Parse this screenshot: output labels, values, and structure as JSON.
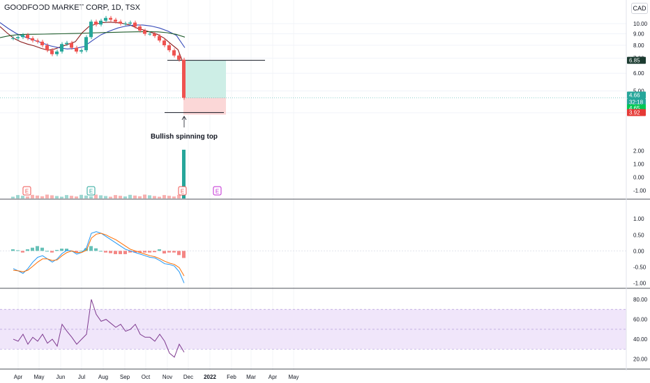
{
  "title": "GOODFOOD MARKET CORP, 1D, TSX",
  "currency": "CAD",
  "colors": {
    "up": "#26a69a",
    "down": "#ef5350",
    "sma_short": "#8b1a1a",
    "sma_mid": "#3449b8",
    "sma_long": "#1d5b2a",
    "macd": "#2196f3",
    "signal": "#ff6d00",
    "rsi": "#7e3a8f",
    "rsi_band": "#f0e6fa",
    "target_zone": "#cdeee6",
    "stop_zone": "#fbd7d7",
    "earnings_red": "#ef5350",
    "earnings_green": "#26a69a",
    "earnings_future": "#c026d3"
  },
  "annotation": "Bullish spinning top",
  "price_labels": [
    {
      "text": "6.85",
      "bg": "#1b3b30"
    },
    {
      "text": "4.66",
      "bg": "#26a69a"
    },
    {
      "text": "32:18",
      "bg": "#26a69a"
    },
    {
      "text": "4.65",
      "bg": "#00c853"
    },
    {
      "text": "3.92",
      "bg": "#e53935"
    }
  ],
  "earnings_markers": [
    {
      "date": "2021-04-13",
      "label": "E",
      "kind": "past-red"
    },
    {
      "date": "2021-07-14",
      "label": "E",
      "kind": "past-green"
    },
    {
      "date": "2021-11-22",
      "label": "E",
      "kind": "past-red"
    },
    {
      "date": "2022-01-11",
      "label": "E",
      "kind": "future"
    }
  ],
  "chart_data": [
    {
      "type": "candlestick",
      "title": "GOODFOOD MARKET CORP, 1D, TSX",
      "y_axis_ticks": [
        "10.00",
        "9.00",
        "8.00",
        "7.00",
        "6.00",
        "5.00",
        "4.00"
      ],
      "ylim": [
        3.2,
        11.2
      ],
      "scale": "log",
      "x_axis_ticks": [
        "Apr",
        "May",
        "Jun",
        "Jul",
        "Aug",
        "Sep",
        "Oct",
        "Nov",
        "Dec",
        "2022",
        "Feb",
        "Mar",
        "Apr",
        "May"
      ],
      "close_series": {
        "dates": [
          "2021-03-22",
          "2021-03-29",
          "2021-04-05",
          "2021-04-12",
          "2021-04-19",
          "2021-04-26",
          "2021-05-03",
          "2021-05-10",
          "2021-05-17",
          "2021-05-24",
          "2021-05-31",
          "2021-06-07",
          "2021-06-14",
          "2021-06-21",
          "2021-06-28",
          "2021-07-05",
          "2021-07-12",
          "2021-07-19",
          "2021-07-26",
          "2021-08-02",
          "2021-08-09",
          "2021-08-16",
          "2021-08-23",
          "2021-08-30",
          "2021-09-06",
          "2021-09-13",
          "2021-09-20",
          "2021-09-27",
          "2021-10-04",
          "2021-10-11",
          "2021-10-18",
          "2021-10-25",
          "2021-11-01",
          "2021-11-08",
          "2021-11-15",
          "2021-11-22"
        ],
        "values": [
          8.6,
          8.7,
          8.9,
          8.6,
          8.4,
          8.3,
          8.0,
          7.6,
          7.3,
          7.5,
          8.1,
          8.2,
          7.8,
          7.5,
          7.6,
          8.7,
          10.2,
          9.9,
          10.3,
          10.6,
          10.4,
          10.2,
          10.0,
          10.0,
          10.1,
          9.7,
          9.3,
          9.0,
          9.0,
          8.8,
          8.4,
          8.0,
          7.6,
          7.2,
          6.9,
          4.66
        ]
      },
      "moving_averages": [
        {
          "values": [
            9.7,
            9.1,
            8.6,
            8.3,
            8.1,
            7.95,
            7.75,
            7.6,
            7.7,
            7.9,
            8.1,
            8.3,
            9.1,
            9.7,
            9.95,
            10.1,
            10.15,
            10.1,
            10.0,
            9.85,
            9.55,
            9.35,
            9.15,
            8.95,
            8.6,
            8.1,
            7.65,
            6.4
          ]
        },
        {
          "values": [
            10.1,
            9.5,
            9.0,
            8.7,
            8.45,
            8.2,
            7.95,
            7.8,
            7.7,
            7.75,
            7.9,
            8.4,
            8.9,
            9.25,
            9.55,
            9.75,
            9.85,
            9.85,
            9.75,
            9.55,
            9.25,
            8.85,
            7.8
          ]
        },
        {
          "values": [
            8.65,
            8.82,
            8.92,
            8.95,
            8.96,
            8.97,
            8.99,
            9.0,
            9.02,
            9.04,
            9.07,
            9.1,
            9.12,
            9.14,
            9.16,
            9.18,
            9.19,
            9.2,
            9.18,
            9.1,
            8.95,
            8.7
          ]
        }
      ],
      "annotation": "Bullish spinning top",
      "trade_levels": {
        "target": 6.85,
        "entry": 4.66,
        "stop": 3.92,
        "support": 4.65
      },
      "volume": {
        "spike_date": "2021-11-22",
        "relative_spike": 1.0,
        "relative_base": 0.06
      }
    },
    {
      "type": "line",
      "title": "",
      "y_axis_ticks": [
        "2.00",
        "1.00",
        "0.00",
        "-1.00"
      ],
      "ylim": [
        -1.5,
        2.6
      ],
      "series": [
        {
          "values": [
            0.0,
            0.0,
            0.0,
            0.0
          ]
        }
      ],
      "note": "empty oscillator pane"
    },
    {
      "type": "line",
      "y_axis_ticks": [
        "1.00",
        "0.50",
        "0.00",
        "-0.50",
        "-1.00"
      ],
      "ylim": [
        -1.1,
        1.2
      ],
      "series": [
        {
          "values": [
            -0.55,
            -0.62,
            -0.7,
            -0.55,
            -0.35,
            -0.2,
            -0.15,
            -0.25,
            -0.35,
            -0.25,
            -0.08,
            0.02,
            0.0,
            -0.1,
            -0.05,
            0.1,
            0.55,
            0.6,
            0.55,
            0.45,
            0.35,
            0.25,
            0.15,
            0.05,
            0.0,
            -0.05,
            -0.1,
            -0.15,
            -0.2,
            -0.22,
            -0.3,
            -0.4,
            -0.42,
            -0.47,
            -0.65,
            -1.0
          ]
        },
        {
          "values": [
            -0.6,
            -0.62,
            -0.65,
            -0.6,
            -0.48,
            -0.35,
            -0.25,
            -0.25,
            -0.3,
            -0.28,
            -0.15,
            -0.05,
            0.0,
            -0.05,
            -0.05,
            0.02,
            0.4,
            0.52,
            0.55,
            0.5,
            0.42,
            0.35,
            0.25,
            0.15,
            0.05,
            0.0,
            -0.05,
            -0.1,
            -0.15,
            -0.18,
            -0.24,
            -0.32,
            -0.38,
            -0.42,
            -0.52,
            -0.78
          ]
        }
      ],
      "histogram": [
        0.05,
        0.02,
        -0.05,
        0.05,
        0.1,
        0.15,
        0.1,
        0.0,
        -0.05,
        0.03,
        0.07,
        0.07,
        0.0,
        -0.05,
        0.0,
        0.08,
        0.15,
        0.08,
        0.0,
        -0.05,
        -0.07,
        -0.1,
        -0.1,
        -0.1,
        -0.05,
        -0.05,
        -0.05,
        -0.05,
        -0.05,
        -0.04,
        0.05,
        -0.08,
        -0.05,
        -0.05,
        -0.13,
        -0.22
      ]
    },
    {
      "type": "line",
      "y_axis_ticks": [
        "80.00",
        "60.00",
        "40.00",
        "20.00"
      ],
      "ylim": [
        10,
        87
      ],
      "band": [
        30,
        70
      ],
      "series": [
        {
          "values": [
            40,
            38,
            45,
            35,
            42,
            38,
            45,
            36,
            40,
            33,
            55,
            48,
            42,
            35,
            40,
            45,
            80,
            65,
            58,
            60,
            56,
            52,
            55,
            48,
            50,
            55,
            45,
            42,
            42,
            38,
            45,
            38,
            26,
            22,
            35,
            27
          ]
        }
      ]
    }
  ]
}
